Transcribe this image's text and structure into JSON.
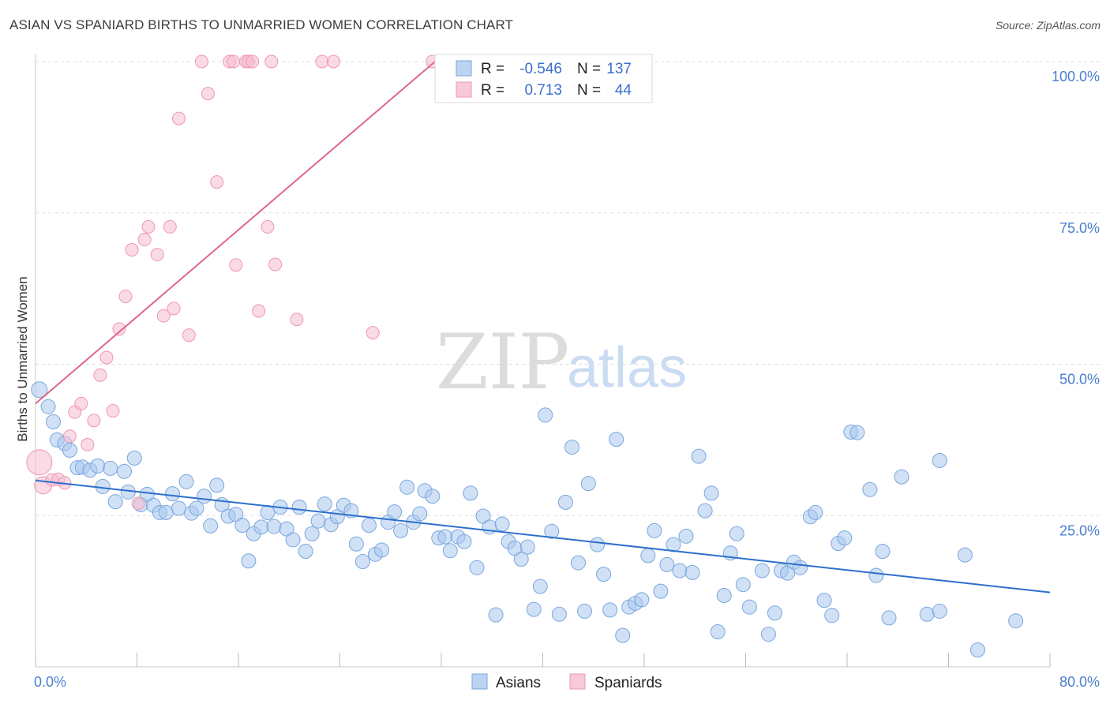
{
  "title": "ASIAN VS SPANIARD BIRTHS TO UNMARRIED WOMEN CORRELATION CHART",
  "source": "Source: ZipAtlas.com",
  "watermark": {
    "zip": "ZIP",
    "atlas": "atlas"
  },
  "colors": {
    "asian_fill": "#a9c8ef",
    "asian_stroke": "#7aa6de",
    "asian_line": "#2d6fcc",
    "spaniard_fill": "#f6bccd",
    "spaniard_stroke": "#ee98b2",
    "spaniard_line": "#e0668c",
    "tick_label": "#4a7fd0",
    "grid": "#dddddd"
  },
  "stats": [
    {
      "r_label": "R = ",
      "r": "-0.546",
      "n_label": "N = ",
      "n": "137"
    },
    {
      "r_label": "R = ",
      "r": "0.713",
      "n_label": "N = ",
      "n": "44"
    }
  ],
  "legend": [
    "Asians",
    "Spaniards"
  ],
  "chart_data": {
    "type": "scatter",
    "title": "ASIAN VS SPANIARD BIRTHS TO UNMARRIED WOMEN CORRELATION CHART",
    "xlabel": "",
    "ylabel": "Births to Unmarried Women",
    "xlim": [
      0,
      80
    ],
    "ylim": [
      0,
      100
    ],
    "x_ticks": [
      "0.0%",
      "80.0%"
    ],
    "y_ticks": [
      "25.0%",
      "50.0%",
      "75.0%",
      "100.0%"
    ],
    "y_tick_values": [
      25,
      50,
      75,
      100
    ],
    "grid": true,
    "legend_position": "bottom",
    "series": [
      {
        "name": "Asians",
        "trend": [
          [
            0,
            30.8
          ],
          [
            80,
            12.3
          ]
        ],
        "points": [
          [
            0.3,
            45.8
          ],
          [
            1.0,
            43.0
          ],
          [
            1.4,
            40.5
          ],
          [
            1.7,
            37.5
          ],
          [
            2.3,
            36.9
          ],
          [
            2.7,
            35.8
          ],
          [
            3.3,
            32.9
          ],
          [
            3.7,
            33.0
          ],
          [
            4.3,
            32.5
          ],
          [
            4.9,
            33.2
          ],
          [
            5.3,
            29.8
          ],
          [
            5.9,
            32.8
          ],
          [
            6.3,
            27.3
          ],
          [
            7.0,
            32.3
          ],
          [
            7.3,
            28.9
          ],
          [
            7.8,
            34.5
          ],
          [
            8.3,
            26.8
          ],
          [
            8.8,
            28.5
          ],
          [
            9.3,
            26.7
          ],
          [
            9.8,
            25.5
          ],
          [
            10.3,
            25.5
          ],
          [
            10.8,
            28.6
          ],
          [
            11.3,
            26.2
          ],
          [
            11.9,
            30.6
          ],
          [
            12.3,
            25.4
          ],
          [
            12.7,
            26.2
          ],
          [
            13.3,
            28.2
          ],
          [
            13.8,
            23.3
          ],
          [
            14.3,
            30.0
          ],
          [
            14.7,
            26.8
          ],
          [
            15.2,
            24.9
          ],
          [
            15.8,
            25.2
          ],
          [
            16.3,
            23.4
          ],
          [
            16.8,
            17.5
          ],
          [
            17.2,
            22.0
          ],
          [
            17.8,
            23.1
          ],
          [
            18.3,
            25.5
          ],
          [
            18.8,
            23.2
          ],
          [
            19.3,
            26.4
          ],
          [
            19.8,
            22.8
          ],
          [
            20.3,
            21.0
          ],
          [
            20.8,
            26.4
          ],
          [
            21.3,
            19.1
          ],
          [
            21.8,
            22.0
          ],
          [
            22.3,
            24.1
          ],
          [
            22.8,
            26.9
          ],
          [
            23.3,
            23.5
          ],
          [
            23.8,
            24.8
          ],
          [
            24.3,
            26.7
          ],
          [
            24.9,
            25.8
          ],
          [
            25.3,
            20.3
          ],
          [
            25.8,
            17.4
          ],
          [
            26.3,
            23.4
          ],
          [
            26.8,
            18.6
          ],
          [
            27.3,
            19.3
          ],
          [
            27.8,
            23.9
          ],
          [
            28.3,
            25.6
          ],
          [
            28.8,
            22.5
          ],
          [
            29.3,
            29.7
          ],
          [
            29.8,
            23.9
          ],
          [
            30.3,
            25.3
          ],
          [
            30.7,
            29.1
          ],
          [
            31.3,
            28.2
          ],
          [
            31.8,
            21.3
          ],
          [
            32.3,
            21.5
          ],
          [
            32.7,
            19.2
          ],
          [
            33.3,
            21.5
          ],
          [
            33.8,
            20.7
          ],
          [
            34.3,
            28.7
          ],
          [
            34.8,
            16.4
          ],
          [
            35.3,
            24.9
          ],
          [
            35.8,
            23.1
          ],
          [
            36.3,
            8.6
          ],
          [
            36.8,
            23.6
          ],
          [
            37.3,
            20.7
          ],
          [
            37.8,
            19.6
          ],
          [
            38.3,
            17.8
          ],
          [
            38.8,
            19.8
          ],
          [
            39.3,
            9.5
          ],
          [
            39.8,
            13.3
          ],
          [
            40.2,
            41.6
          ],
          [
            40.7,
            22.4
          ],
          [
            41.3,
            8.7
          ],
          [
            41.8,
            27.2
          ],
          [
            42.3,
            36.3
          ],
          [
            42.8,
            17.2
          ],
          [
            43.3,
            9.2
          ],
          [
            43.6,
            30.3
          ],
          [
            44.3,
            20.2
          ],
          [
            44.8,
            15.3
          ],
          [
            45.3,
            9.4
          ],
          [
            45.8,
            37.6
          ],
          [
            46.3,
            5.2
          ],
          [
            46.8,
            9.9
          ],
          [
            47.3,
            10.5
          ],
          [
            47.8,
            11.1
          ],
          [
            48.3,
            18.4
          ],
          [
            48.8,
            22.5
          ],
          [
            49.3,
            12.5
          ],
          [
            49.8,
            16.9
          ],
          [
            50.3,
            20.2
          ],
          [
            50.8,
            15.9
          ],
          [
            51.3,
            21.6
          ],
          [
            51.8,
            15.6
          ],
          [
            52.3,
            34.8
          ],
          [
            52.8,
            25.8
          ],
          [
            53.3,
            28.7
          ],
          [
            53.8,
            5.8
          ],
          [
            54.3,
            11.8
          ],
          [
            54.8,
            18.8
          ],
          [
            55.3,
            22.0
          ],
          [
            55.8,
            13.6
          ],
          [
            56.3,
            9.9
          ],
          [
            57.3,
            15.9
          ],
          [
            57.8,
            5.4
          ],
          [
            58.3,
            8.9
          ],
          [
            58.8,
            15.9
          ],
          [
            59.3,
            15.5
          ],
          [
            59.8,
            17.3
          ],
          [
            60.3,
            16.4
          ],
          [
            61.1,
            24.8
          ],
          [
            61.5,
            25.5
          ],
          [
            62.2,
            11.0
          ],
          [
            62.8,
            8.5
          ],
          [
            63.3,
            20.4
          ],
          [
            63.8,
            21.3
          ],
          [
            64.3,
            38.8
          ],
          [
            64.8,
            38.7
          ],
          [
            65.8,
            29.3
          ],
          [
            66.3,
            15.1
          ],
          [
            66.8,
            19.1
          ],
          [
            67.3,
            8.1
          ],
          [
            68.3,
            31.4
          ],
          [
            70.3,
            8.7
          ],
          [
            71.3,
            34.1
          ],
          [
            71.3,
            9.2
          ],
          [
            73.3,
            18.5
          ],
          [
            74.3,
            2.8
          ],
          [
            77.3,
            7.6
          ]
        ]
      },
      {
        "name": "Spaniards",
        "trend": [
          [
            0,
            43.5
          ],
          [
            31.5,
            100
          ]
        ],
        "points": [
          [
            0.3,
            33.8
          ],
          [
            0.6,
            30.0
          ],
          [
            1.3,
            30.9
          ],
          [
            1.8,
            31.0
          ],
          [
            2.3,
            30.4
          ],
          [
            2.7,
            38.1
          ],
          [
            3.1,
            42.1
          ],
          [
            3.6,
            43.5
          ],
          [
            4.1,
            36.7
          ],
          [
            4.6,
            40.7
          ],
          [
            5.1,
            48.2
          ],
          [
            5.6,
            51.1
          ],
          [
            6.1,
            42.3
          ],
          [
            6.6,
            55.8
          ],
          [
            7.1,
            61.2
          ],
          [
            7.6,
            68.9
          ],
          [
            8.1,
            27.0
          ],
          [
            8.6,
            70.6
          ],
          [
            8.9,
            72.7
          ],
          [
            9.6,
            68.1
          ],
          [
            10.1,
            58.0
          ],
          [
            10.6,
            72.7
          ],
          [
            10.9,
            59.2
          ],
          [
            11.3,
            90.6
          ],
          [
            12.1,
            54.8
          ],
          [
            13.1,
            100
          ],
          [
            13.6,
            94.7
          ],
          [
            14.3,
            80.1
          ],
          [
            15.3,
            100
          ],
          [
            15.6,
            100
          ],
          [
            15.8,
            66.4
          ],
          [
            16.6,
            100
          ],
          [
            16.8,
            100
          ],
          [
            17.1,
            100
          ],
          [
            17.6,
            58.8
          ],
          [
            18.3,
            72.7
          ],
          [
            18.6,
            100
          ],
          [
            18.9,
            66.5
          ],
          [
            20.6,
            57.4
          ],
          [
            22.6,
            100
          ],
          [
            23.5,
            100
          ],
          [
            26.6,
            55.2
          ],
          [
            31.3,
            100
          ],
          [
            44.9,
            100
          ]
        ]
      }
    ]
  }
}
